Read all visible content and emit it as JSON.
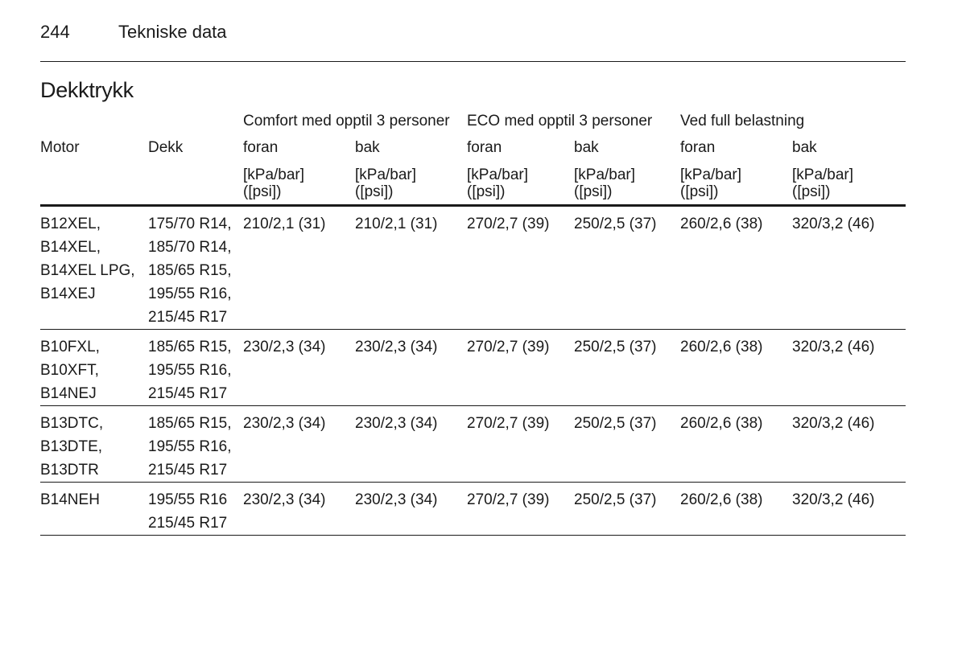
{
  "header": {
    "page_number": "244",
    "running_title": "Tekniske data"
  },
  "section_title": "Dekktrykk",
  "table": {
    "group_headers": {
      "comfort": "Comfort med opptil 3 personer",
      "eco": "ECO med opptil 3 personer",
      "full": "Ved full belastning"
    },
    "columns": {
      "motor": "Motor",
      "dekk": "Dekk",
      "comfort_front": "foran",
      "comfort_rear": "bak",
      "eco_front": "foran",
      "eco_rear": "bak",
      "full_front": "foran",
      "full_rear": "bak"
    },
    "unit": "[kPa/bar]\n([psi])",
    "rows": [
      {
        "motor": "B12XEL,\nB14XEL,\nB14XEL LPG,\nB14XEJ",
        "dekk": "175/70 R14,\n185/70 R14,\n185/65 R15,\n195/55 R16,\n215/45 R17",
        "comfort_front": "210/2,1 (31)",
        "comfort_rear": "210/2,1 (31)",
        "eco_front": "270/2,7 (39)",
        "eco_rear": "250/2,5 (37)",
        "full_front": "260/2,6 (38)",
        "full_rear": "320/3,2 (46)"
      },
      {
        "motor": "B10FXL,\nB10XFT,\nB14NEJ",
        "dekk": "185/65 R15,\n195/55 R16,\n215/45 R17",
        "comfort_front": "230/2,3 (34)",
        "comfort_rear": "230/2,3 (34)",
        "eco_front": "270/2,7 (39)",
        "eco_rear": "250/2,5 (37)",
        "full_front": "260/2,6 (38)",
        "full_rear": "320/3,2 (46)"
      },
      {
        "motor": "B13DTC,\nB13DTE,\nB13DTR",
        "dekk": "185/65 R15,\n195/55 R16,\n215/45 R17",
        "comfort_front": "230/2,3 (34)",
        "comfort_rear": "230/2,3 (34)",
        "eco_front": "270/2,7 (39)",
        "eco_rear": "250/2,5 (37)",
        "full_front": "260/2,6 (38)",
        "full_rear": "320/3,2 (46)"
      },
      {
        "motor": "B14NEH",
        "dekk": "195/55 R16\n215/45 R17",
        "comfort_front": "230/2,3 (34)",
        "comfort_rear": "230/2,3 (34)",
        "eco_front": "270/2,7 (39)",
        "eco_rear": "250/2,5 (37)",
        "full_front": "260/2,6 (38)",
        "full_rear": "320/3,2 (46)"
      }
    ]
  }
}
